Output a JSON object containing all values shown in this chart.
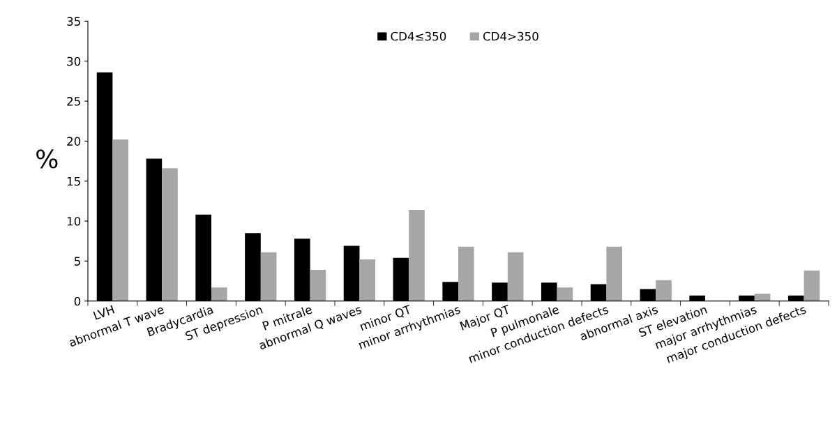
{
  "chart_data": {
    "type": "bar",
    "ylabel": "%",
    "categories": [
      "LVH",
      "abnormal T wave",
      "Bradycardia",
      "ST depression",
      "P mitrale",
      "abnormal Q waves",
      "minor QT",
      "minor arrhythmias",
      "Major QT",
      "P pulmonale",
      "minor conduction defects",
      "abnormal axis",
      "ST elevation",
      "major arrhythmias",
      "major conduction defects"
    ],
    "series": [
      {
        "name": "CD4≤350",
        "color": "#000000",
        "values": [
          28.6,
          17.8,
          10.8,
          8.5,
          7.8,
          6.9,
          5.4,
          2.4,
          2.3,
          2.3,
          2.1,
          1.5,
          0.7,
          0.7,
          0.7
        ]
      },
      {
        "name": "CD4>350",
        "color": "#a6a6a6",
        "values": [
          20.2,
          16.6,
          1.7,
          6.1,
          3.9,
          5.2,
          11.4,
          6.8,
          6.1,
          1.7,
          6.8,
          2.6,
          0,
          0.9,
          3.8
        ]
      }
    ],
    "ylim": [
      0,
      35
    ],
    "yticks": [
      0,
      5,
      10,
      15,
      20,
      25,
      30,
      35
    ],
    "grid": false,
    "legend": "top"
  }
}
